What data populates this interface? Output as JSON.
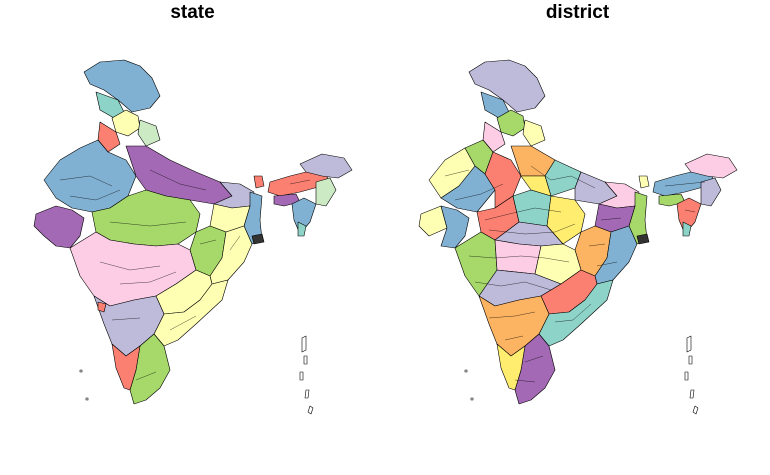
{
  "panels": [
    {
      "title": "state"
    },
    {
      "title": "district"
    }
  ],
  "palette": {
    "blue": "#80b1d3",
    "lavender": "#bebada",
    "purple": "#a469b4",
    "green": "#a6d96a",
    "yellow": "#ffffb3",
    "pink": "#fccde5",
    "red": "#fb8072",
    "teal": "#8dd3c7",
    "orange": "#fdb462",
    "mint": "#ccebc5",
    "gold": "#ffed6f",
    "grey": "#d9d9d9"
  }
}
